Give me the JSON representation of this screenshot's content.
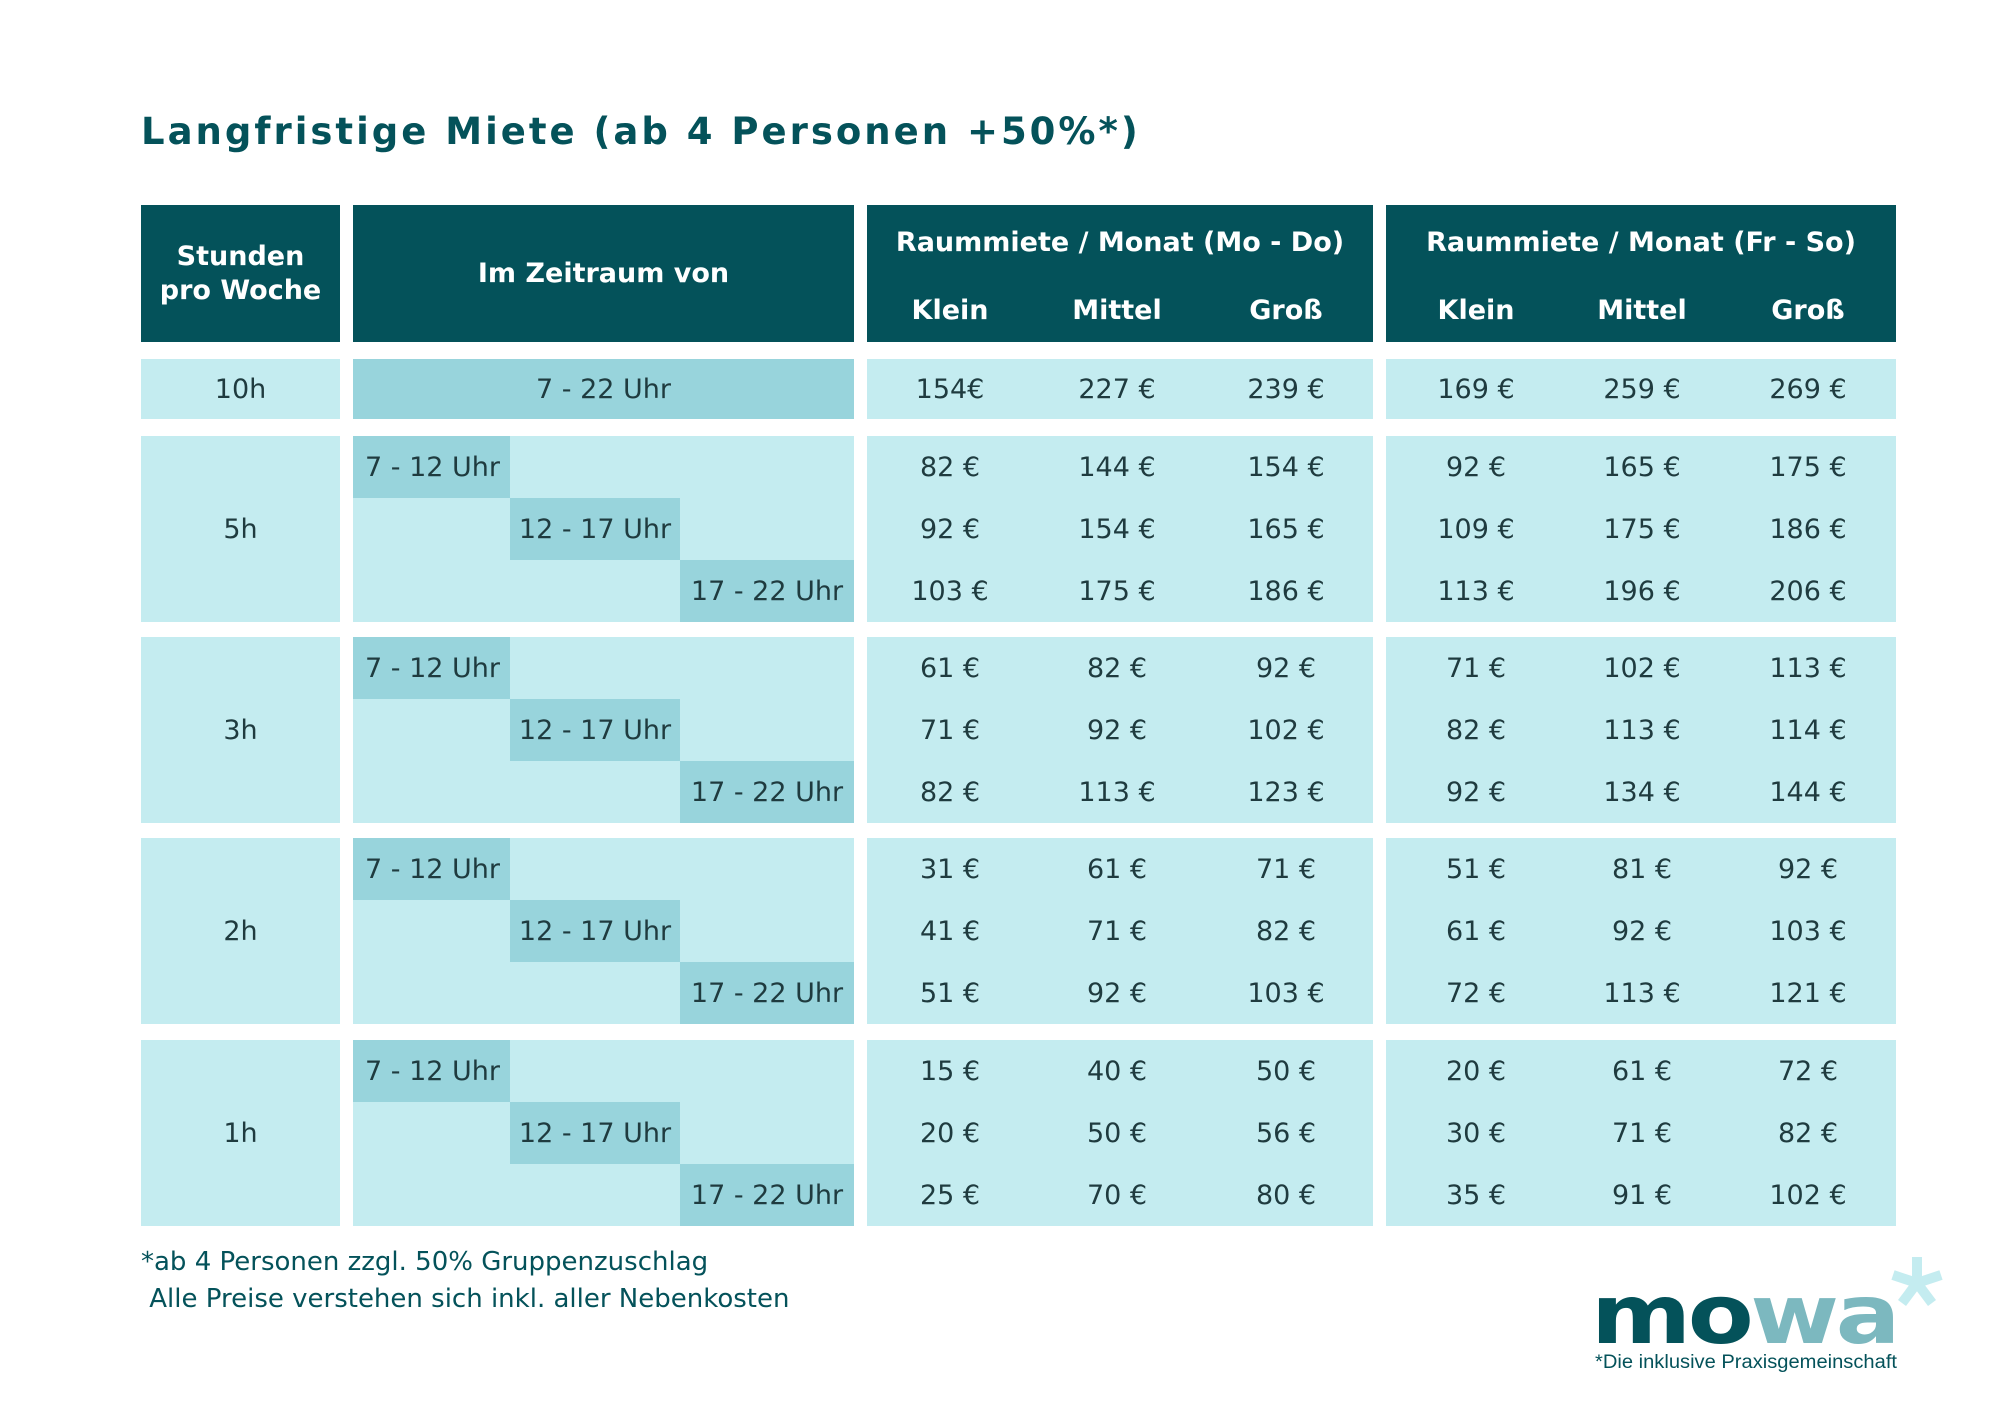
{
  "title": "Langfristige Miete (ab 4 Personen +50%*)",
  "header": {
    "hours": "Stunden\npro Woche",
    "period": "Im Zeitraum von",
    "modo": "Raummiete / Monat (Mo - Do)",
    "frso": "Raummiete / Monat (Fr - So)",
    "sizes": [
      "Klein",
      "Mittel",
      "Groß"
    ]
  },
  "row10h": {
    "hours": "10h",
    "time": "7 - 22 Uhr",
    "modo": [
      "154€",
      "227 €",
      "239 €"
    ],
    "frso": [
      "169 €",
      "259 €",
      "269 €"
    ]
  },
  "groups": [
    {
      "hours": "5h",
      "rows": [
        {
          "time": "7 - 12 Uhr",
          "modo": [
            "82 €",
            "144 €",
            "154 €"
          ],
          "frso": [
            "92 €",
            "165 €",
            "175 €"
          ]
        },
        {
          "time": "12 - 17 Uhr",
          "modo": [
            "92 €",
            "154 €",
            "165 €"
          ],
          "frso": [
            "109 €",
            "175 €",
            "186 €"
          ]
        },
        {
          "time": "17 - 22 Uhr",
          "modo": [
            "103 €",
            "175 €",
            "186 €"
          ],
          "frso": [
            "113 €",
            "196 €",
            "206 €"
          ]
        }
      ]
    },
    {
      "hours": "3h",
      "rows": [
        {
          "time": "7 - 12 Uhr",
          "modo": [
            "61 €",
            "82 €",
            "92 €"
          ],
          "frso": [
            "71 €",
            "102 €",
            "113 €"
          ]
        },
        {
          "time": "12 - 17 Uhr",
          "modo": [
            "71 €",
            "92 €",
            "102 €"
          ],
          "frso": [
            "82 €",
            "113 €",
            "114 €"
          ]
        },
        {
          "time": "17 - 22 Uhr",
          "modo": [
            "82 €",
            "113 €",
            "123 €"
          ],
          "frso": [
            "92 €",
            "134 €",
            "144 €"
          ]
        }
      ]
    },
    {
      "hours": "2h",
      "rows": [
        {
          "time": "7 - 12 Uhr",
          "modo": [
            "31 €",
            "61 €",
            "71 €"
          ],
          "frso": [
            "51 €",
            "81 €",
            "92 €"
          ]
        },
        {
          "time": "12 - 17 Uhr",
          "modo": [
            "41 €",
            "71 €",
            "82 €"
          ],
          "frso": [
            "61 €",
            "92 €",
            "103 €"
          ]
        },
        {
          "time": "17 - 22 Uhr",
          "modo": [
            "51 €",
            "92 €",
            "103 €"
          ],
          "frso": [
            "72 €",
            "113 €",
            "121 €"
          ]
        }
      ]
    },
    {
      "hours": "1h",
      "rows": [
        {
          "time": "7 - 12 Uhr",
          "modo": [
            "15 €",
            "40 €",
            "50 €"
          ],
          "frso": [
            "20 €",
            "61 €",
            "72 €"
          ]
        },
        {
          "time": "12 - 17 Uhr",
          "modo": [
            "20 €",
            "50 €",
            "56 €"
          ],
          "frso": [
            "30 €",
            "71 €",
            "82 €"
          ]
        },
        {
          "time": "17 - 22 Uhr",
          "modo": [
            "25 €",
            "70 €",
            "80 €"
          ],
          "frso": [
            "35 €",
            "91 €",
            "102 €"
          ]
        }
      ]
    }
  ],
  "footnotes": [
    "*ab 4 Personen zzgl. 50% Gruppenzuschlag",
    " Alle Preise verstehen sich inkl. aller Nebenkosten"
  ],
  "logo": {
    "text_dark": "mo",
    "text_light": "wa",
    "tagline": "*Die inklusive Praxisgemeinschaft"
  },
  "colors": {
    "dark": "#04525a",
    "light": "#c4ecf0",
    "mid": "#98d4dc",
    "logo_light": "#7cb8bf"
  }
}
